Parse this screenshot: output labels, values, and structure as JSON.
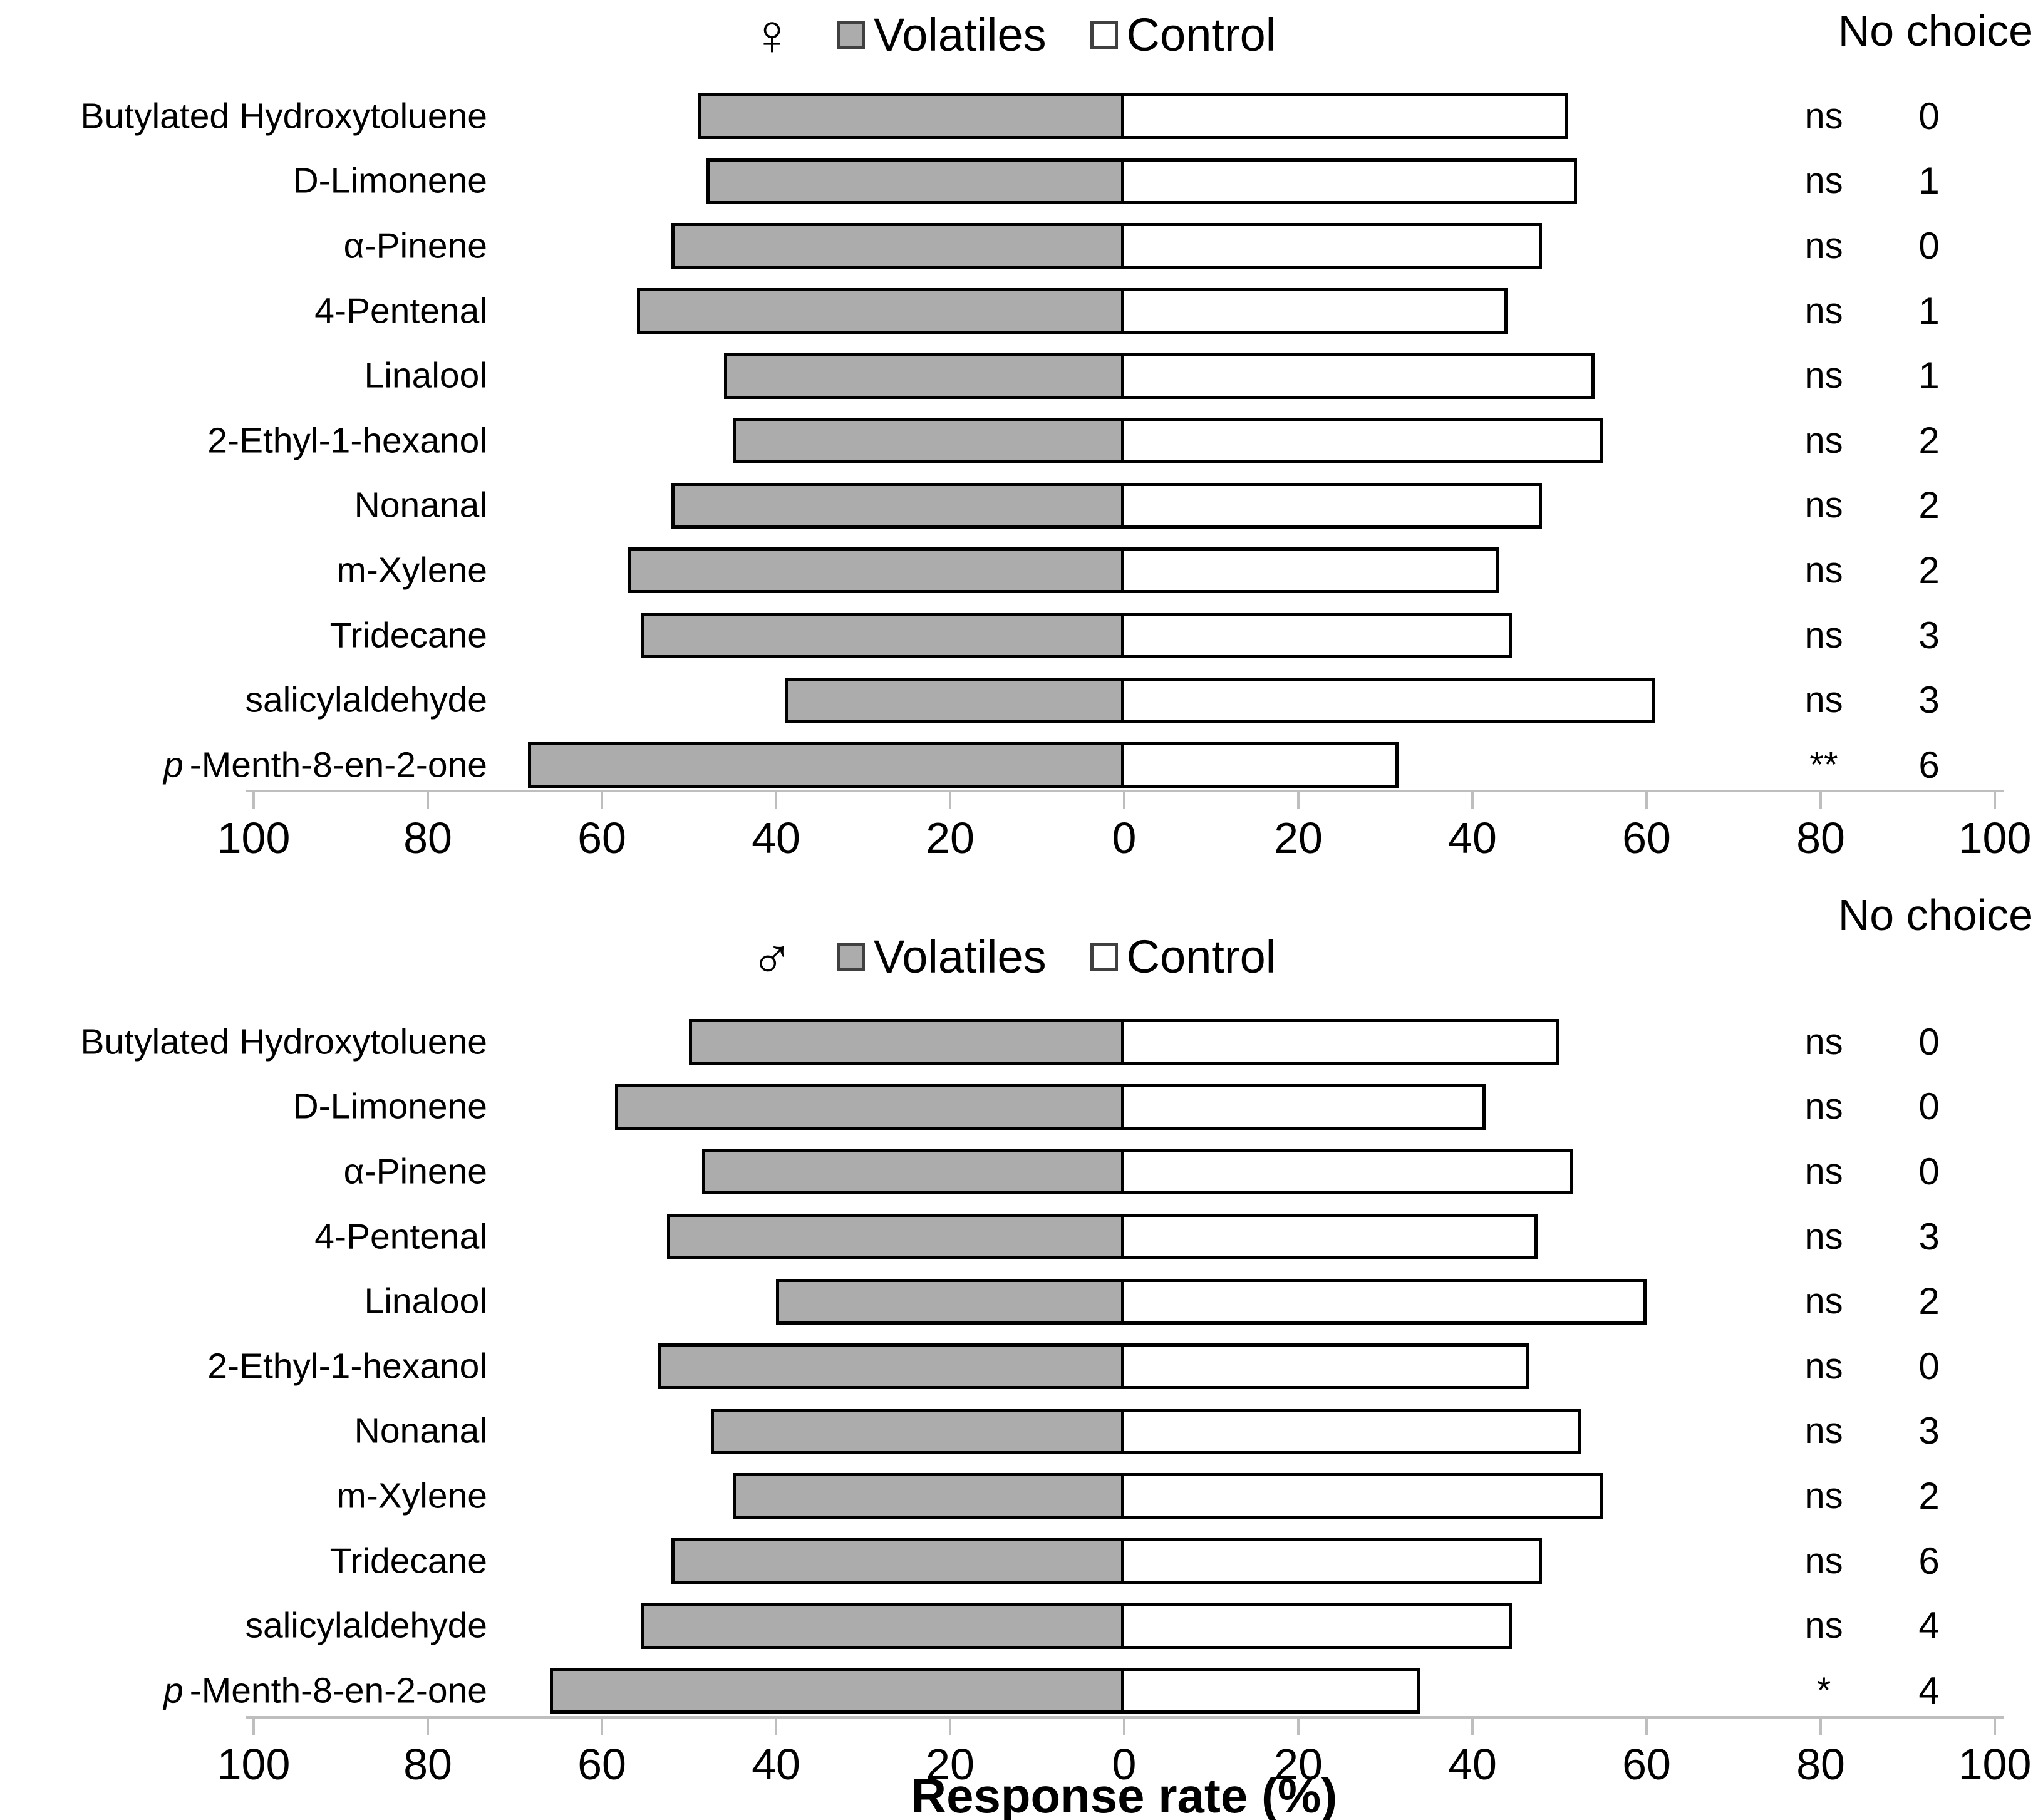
{
  "figure": {
    "x_axis_title": "Response rate (%)"
  },
  "legend": {
    "volatiles_label": "Volatiles",
    "control_label": "Control",
    "no_choice_label": "No choice"
  },
  "colors": {
    "volatiles_fill": "#ACACAC",
    "control_fill": "#FFFFFF",
    "bar_border": "#000000",
    "axis_line": "#BEBEBE",
    "text": "#000000"
  },
  "chart_data": [
    {
      "type": "bar",
      "subtype": "diverging-horizontal",
      "group": "female",
      "sex_symbol": "♀",
      "xlabel": "Response rate (%)",
      "axis_range_each_side": 100,
      "tick_labels": [
        "100",
        "80",
        "60",
        "40",
        "20",
        "0",
        "20",
        "40",
        "60",
        "80",
        "100"
      ],
      "grid": false,
      "legend_position": "top-center",
      "categories": [
        "Butylated Hydroxytoluene",
        "D-Limonene",
        "α-Pinene",
        "4-Pentenal",
        "Linalool",
        "2-Ethyl-1-hexanol",
        "Nonanal",
        "m-Xylene",
        "Tridecane",
        "salicylaldehyde",
        "p-Menth-8-en-2-one"
      ],
      "italic_first_letter_rows": [
        10
      ],
      "series": [
        {
          "name": "Volatiles",
          "direction": "left",
          "values": [
            49,
            48,
            52,
            56,
            46,
            45,
            52,
            57,
            55.5,
            39,
            68.5
          ]
        },
        {
          "name": "Control",
          "direction": "right",
          "values": [
            51,
            52,
            48,
            44,
            54,
            55,
            48,
            43,
            44.5,
            61,
            31.5
          ]
        }
      ],
      "significance": [
        "ns",
        "ns",
        "ns",
        "ns",
        "ns",
        "ns",
        "ns",
        "ns",
        "ns",
        "ns",
        "**"
      ],
      "no_choice": [
        "0",
        "1",
        "0",
        "1",
        "1",
        "2",
        "2",
        "2",
        "3",
        "3",
        "6"
      ]
    },
    {
      "type": "bar",
      "subtype": "diverging-horizontal",
      "group": "male",
      "sex_symbol": "♂",
      "xlabel": "Response rate (%)",
      "axis_range_each_side": 100,
      "tick_labels": [
        "100",
        "80",
        "60",
        "40",
        "20",
        "0",
        "20",
        "40",
        "60",
        "80",
        "100"
      ],
      "grid": false,
      "legend_position": "top-center",
      "categories": [
        "Butylated Hydroxytoluene",
        "D-Limonene",
        "α-Pinene",
        "4-Pentenal",
        "Linalool",
        "2-Ethyl-1-hexanol",
        "Nonanal",
        "m-Xylene",
        "Tridecane",
        "salicylaldehyde",
        "p-Menth-8-en-2-one"
      ],
      "italic_first_letter_rows": [
        10
      ],
      "series": [
        {
          "name": "Volatiles",
          "direction": "left",
          "values": [
            50,
            58.5,
            48.5,
            52.5,
            40,
            53.5,
            47.5,
            45,
            52,
            55.5,
            66
          ]
        },
        {
          "name": "Control",
          "direction": "right",
          "values": [
            50,
            41.5,
            51.5,
            47.5,
            60,
            46.5,
            52.5,
            55,
            48,
            44.5,
            34
          ]
        }
      ],
      "significance": [
        "ns",
        "ns",
        "ns",
        "ns",
        "ns",
        "ns",
        "ns",
        "ns",
        "ns",
        "ns",
        "*"
      ],
      "no_choice": [
        "0",
        "0",
        "0",
        "3",
        "2",
        "0",
        "3",
        "2",
        "6",
        "4",
        "4"
      ]
    }
  ]
}
